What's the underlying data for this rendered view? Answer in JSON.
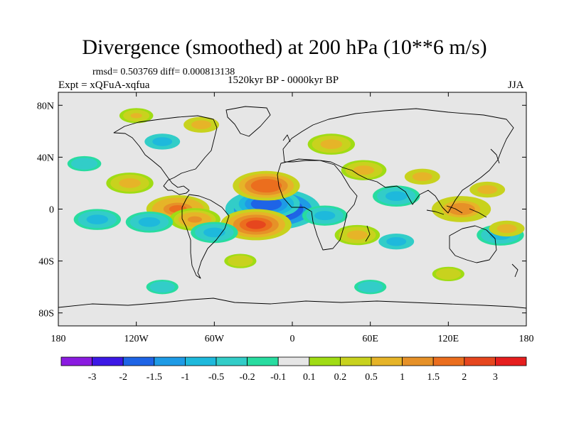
{
  "title": "Divergence (smoothed) at 200 hPa (10**6 m/s)",
  "stats_text": "rmsd= 0.503769 diff= 0.000813138",
  "period": "1520kyr BP - 0000kyr BP",
  "experiment": "Expt = xQFuA-xqfua",
  "season": "JJA",
  "axes": {
    "y_ticks": [
      {
        "lat": 80,
        "label": "80N"
      },
      {
        "lat": 40,
        "label": "40N"
      },
      {
        "lat": 0,
        "label": "0"
      },
      {
        "lat": -40,
        "label": "40S"
      },
      {
        "lat": -80,
        "label": "80S"
      }
    ],
    "x_ticks": [
      {
        "lon": -180,
        "label": "180"
      },
      {
        "lon": -120,
        "label": "120W"
      },
      {
        "lon": -60,
        "label": "60W"
      },
      {
        "lon": 0,
        "label": "0"
      },
      {
        "lon": 60,
        "label": "60E"
      },
      {
        "lon": 120,
        "label": "120E"
      },
      {
        "lon": 180,
        "label": "180"
      }
    ],
    "lat_range": [
      -90,
      90
    ],
    "lon_range": [
      -180,
      180
    ]
  },
  "colorbar": {
    "colors": [
      "#8a1be0",
      "#3c18e6",
      "#1e64e6",
      "#1e9be6",
      "#1eb9dc",
      "#32cdc8",
      "#28dca0",
      "#e6e6e6",
      "#a0dc14",
      "#c8d21e",
      "#e6b428",
      "#e69128",
      "#eb6e1e",
      "#e6461e",
      "#e61e1e"
    ],
    "labels": [
      "-3",
      "-2",
      "-1.5",
      "-1",
      "-0.5",
      "-0.2",
      "-0.1",
      "0.1",
      "0.2",
      "0.5",
      "1",
      "1.5",
      "2",
      "3"
    ]
  },
  "chart_data": {
    "type": "heatmap",
    "title": "Divergence (smoothed) at 200 hPa (10**6 m/s)",
    "units": "10**6 m/s",
    "contour_levels": [
      -3,
      -2,
      -1.5,
      -1,
      -0.5,
      -0.2,
      -0.1,
      0.1,
      0.2,
      0.5,
      1,
      1.5,
      2,
      3
    ],
    "anomalies": [
      {
        "lon": -15,
        "lat": 0,
        "value": -3.2
      },
      {
        "lon": -20,
        "lat": 4,
        "value": -1.8
      },
      {
        "lon": -20,
        "lat": 18,
        "value": 1.8
      },
      {
        "lon": -28,
        "lat": -12,
        "value": 2.0
      },
      {
        "lon": -88,
        "lat": 0,
        "value": 1.6
      },
      {
        "lon": -75,
        "lat": -8,
        "value": 1.0
      },
      {
        "lon": -110,
        "lat": -10,
        "value": -0.8
      },
      {
        "lon": -150,
        "lat": -8,
        "value": -0.8
      },
      {
        "lon": -60,
        "lat": -18,
        "value": -0.8
      },
      {
        "lon": -125,
        "lat": 20,
        "value": 0.8
      },
      {
        "lon": -160,
        "lat": 35,
        "value": -0.5
      },
      {
        "lon": -100,
        "lat": 52,
        "value": -0.6
      },
      {
        "lon": -70,
        "lat": 65,
        "value": 0.6
      },
      {
        "lon": -120,
        "lat": 72,
        "value": 0.5
      },
      {
        "lon": 30,
        "lat": 50,
        "value": 0.8
      },
      {
        "lon": 55,
        "lat": 30,
        "value": 0.7
      },
      {
        "lon": 80,
        "lat": 10,
        "value": -0.8
      },
      {
        "lon": 25,
        "lat": -5,
        "value": -0.7
      },
      {
        "lon": 130,
        "lat": 0,
        "value": 1.4
      },
      {
        "lon": 160,
        "lat": -20,
        "value": -0.8
      },
      {
        "lon": 165,
        "lat": -15,
        "value": 0.6
      },
      {
        "lon": 100,
        "lat": 25,
        "value": 0.6
      },
      {
        "lon": 150,
        "lat": 15,
        "value": 0.6
      },
      {
        "lon": 50,
        "lat": -20,
        "value": 0.7
      },
      {
        "lon": 80,
        "lat": -25,
        "value": -0.6
      },
      {
        "lon": -40,
        "lat": -40,
        "value": 0.4
      },
      {
        "lon": -100,
        "lat": -60,
        "value": -0.4
      },
      {
        "lon": 60,
        "lat": -60,
        "value": -0.4
      },
      {
        "lon": 120,
        "lat": -50,
        "value": 0.4
      }
    ]
  }
}
